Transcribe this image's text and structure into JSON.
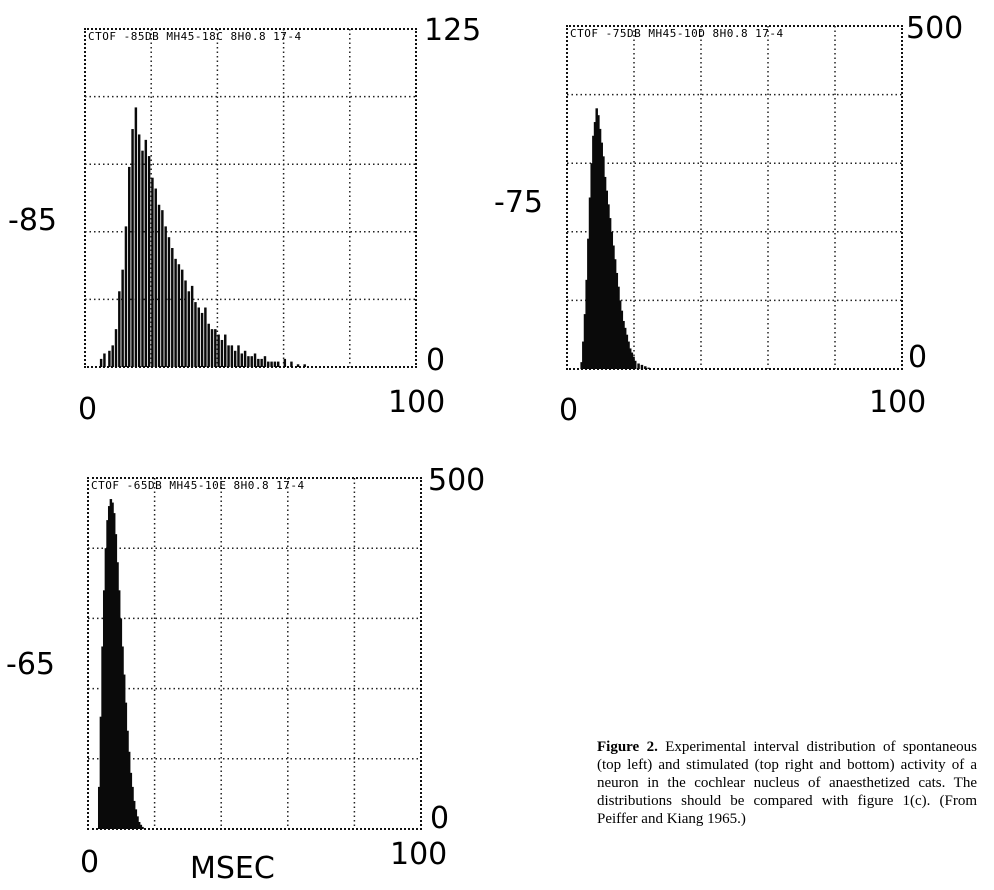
{
  "chart_data": [
    {
      "type": "bar",
      "header": "CTOF  -85DB  MH45-18C 8H0.8  17-4",
      "level_label": "-85",
      "x_tick_labels": [
        "0",
        "100"
      ],
      "y_tick_labels": [
        "0",
        "125"
      ],
      "xlim": [
        0,
        100
      ],
      "ylim": [
        0,
        125
      ],
      "bin_width": 0.5,
      "x": [
        4.5,
        5.5,
        7,
        8,
        9,
        10,
        11,
        12,
        13,
        14,
        15,
        16,
        17,
        18,
        19,
        20,
        21,
        22,
        23,
        24,
        25,
        26,
        27,
        28,
        29,
        30,
        31,
        32,
        33,
        34,
        35,
        36,
        37,
        38,
        39,
        40,
        41,
        42,
        43,
        44,
        45,
        46,
        47,
        48,
        49,
        50,
        51,
        52,
        53,
        54,
        55,
        56,
        57,
        58,
        60,
        62,
        64,
        66
      ],
      "values": [
        3,
        5,
        6,
        8,
        14,
        28,
        36,
        52,
        74,
        88,
        96,
        86,
        80,
        84,
        78,
        70,
        66,
        60,
        58,
        52,
        48,
        44,
        40,
        38,
        36,
        32,
        28,
        30,
        24,
        22,
        20,
        22,
        16,
        14,
        14,
        12,
        10,
        12,
        8,
        8,
        6,
        8,
        5,
        6,
        4,
        4,
        5,
        3,
        3,
        4,
        2,
        2,
        2,
        2,
        3,
        2,
        1,
        1
      ]
    },
    {
      "type": "bar",
      "header": "CTOF  -75DB  MH45-10D 8H0.8  17-4",
      "level_label": "-75",
      "x_tick_labels": [
        "0",
        "100"
      ],
      "y_tick_labels": [
        "0",
        "500"
      ],
      "xlim": [
        0,
        100
      ],
      "ylim": [
        0,
        500
      ],
      "bin_width": 0.5,
      "x": [
        4,
        4.5,
        5,
        5.5,
        6,
        6.5,
        7,
        7.5,
        8,
        8.5,
        9,
        9.5,
        10,
        10.5,
        11,
        11.5,
        12,
        12.5,
        13,
        13.5,
        14,
        14.5,
        15,
        15.5,
        16,
        16.5,
        17,
        17.5,
        18,
        18.5,
        19,
        19.5,
        20,
        21,
        22,
        23,
        24
      ],
      "values": [
        10,
        40,
        80,
        130,
        190,
        250,
        300,
        340,
        360,
        380,
        370,
        350,
        330,
        310,
        280,
        260,
        240,
        220,
        200,
        180,
        160,
        140,
        120,
        100,
        85,
        70,
        60,
        50,
        40,
        30,
        24,
        18,
        12,
        8,
        6,
        4,
        2
      ]
    },
    {
      "type": "bar",
      "header": "CTOF  -65DB  MH45-10E 8H0.8  17-4",
      "level_label": "-65",
      "x_tick_labels": [
        "0",
        "100"
      ],
      "y_tick_labels": [
        "0",
        "500"
      ],
      "xlim": [
        0,
        100
      ],
      "ylim": [
        0,
        500
      ],
      "xlabel": "MSEC",
      "bin_width": 0.5,
      "x": [
        3,
        3.5,
        4,
        4.5,
        5,
        5.5,
        6,
        6.5,
        7,
        7.5,
        8,
        8.5,
        9,
        9.5,
        10,
        10.5,
        11,
        11.5,
        12,
        12.5,
        13,
        13.5,
        14,
        14.5,
        15,
        15.5,
        16
      ],
      "values": [
        60,
        160,
        260,
        340,
        400,
        440,
        460,
        470,
        465,
        450,
        420,
        380,
        340,
        300,
        260,
        220,
        180,
        140,
        110,
        80,
        60,
        40,
        28,
        18,
        10,
        6,
        3
      ]
    }
  ],
  "caption": {
    "label": "Figure 2.",
    "text": "Experimental interval distribution of spontaneous (top left) and stimulated (top right and bottom) activity of a neuron in the cochlear nucleus of anaesthetized cats. The distributions should be compared with figure 1(c). (From Peiffer and Kiang 1965.)"
  }
}
